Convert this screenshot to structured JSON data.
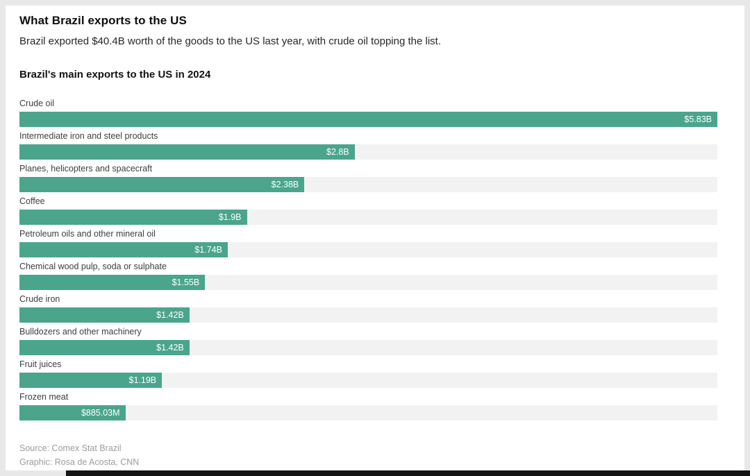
{
  "header": {
    "title": "What Brazil exports to the US",
    "subtitle": "Brazil exported $40.4B worth of the goods to the US last year, with crude oil topping the list."
  },
  "chart_data": {
    "type": "bar",
    "orientation": "horizontal",
    "title": "Brazil's main exports to the US in 2024",
    "categories": [
      "Crude oil",
      "Intermediate iron and steel products",
      "Planes, helicopters and spacecraft",
      "Coffee",
      "Petroleum oils and other mineral oil",
      "Chemical wood pulp, soda or sulphate",
      "Crude iron",
      "Bulldozers and other machinery",
      "Fruit juices",
      "Frozen meat"
    ],
    "values": [
      5.83,
      2.8,
      2.38,
      1.9,
      1.74,
      1.55,
      1.42,
      1.42,
      1.19,
      0.88503
    ],
    "value_labels": [
      "$5.83B",
      "$2.8B",
      "$2.38B",
      "$1.9B",
      "$1.74B",
      "$1.55B",
      "$1.42B",
      "$1.42B",
      "$1.19B",
      "$885.03M"
    ],
    "unit": "USD",
    "xlim": [
      0,
      5.83
    ],
    "grid": false,
    "legend": "none",
    "bar_color": "#4aa58c",
    "track_color": "#f2f2f2"
  },
  "footer": {
    "source": "Source: Comex Stat Brazil",
    "credit": "Graphic: Rosa de Acosta, CNN"
  }
}
